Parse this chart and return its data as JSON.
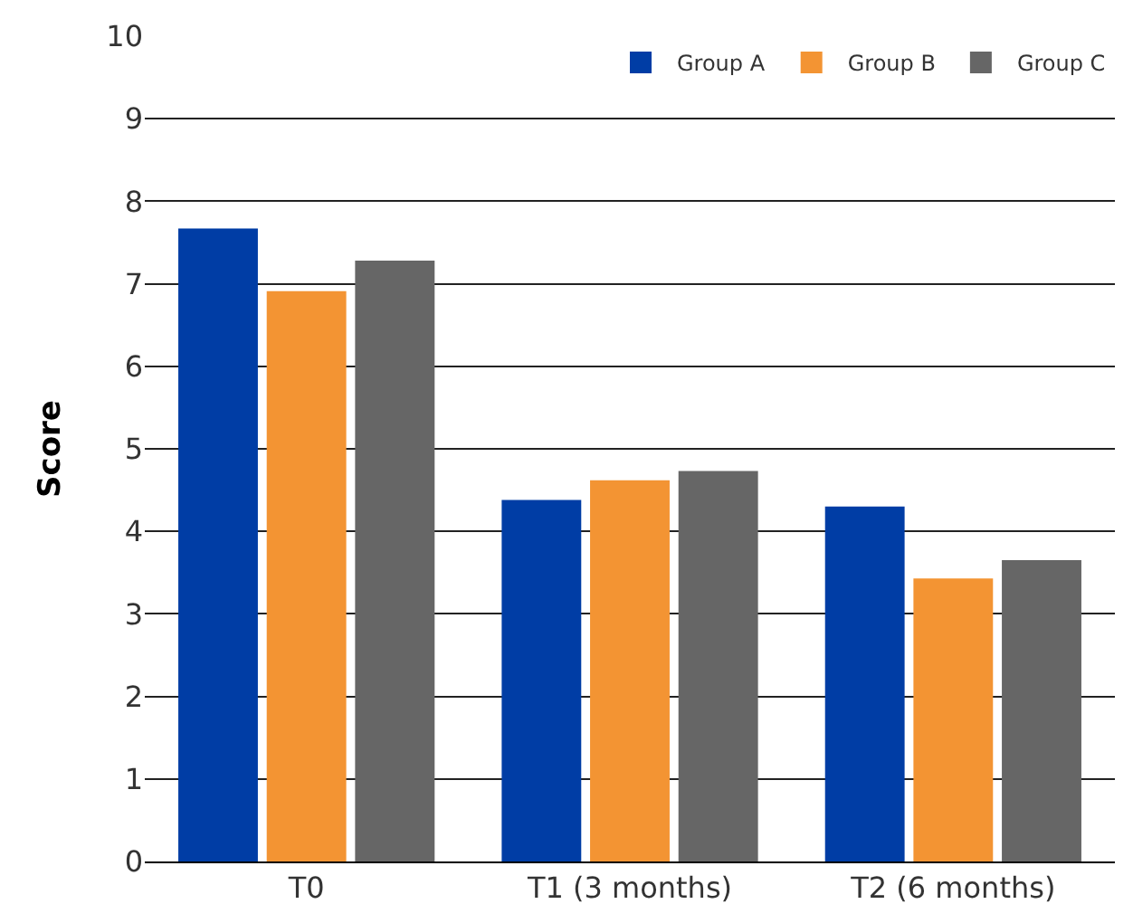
{
  "chart_data": {
    "type": "bar",
    "ylabel": "Score",
    "categories": [
      "T0",
      "T1 (3 months)",
      "T2 (6 months)"
    ],
    "series": [
      {
        "name": "Group A",
        "color": "#003da5",
        "values": [
          7.67,
          4.38,
          4.3
        ]
      },
      {
        "name": "Group B",
        "color": "#f39433",
        "values": [
          6.91,
          4.62,
          3.43
        ]
      },
      {
        "name": "Group C",
        "color": "#666666",
        "values": [
          7.28,
          4.73,
          3.65
        ]
      }
    ],
    "ylim": [
      0,
      10
    ],
    "yticks": [
      0,
      1,
      2,
      3,
      4,
      5,
      6,
      7,
      8,
      9,
      10
    ],
    "grid": "y",
    "legend": "top right"
  }
}
